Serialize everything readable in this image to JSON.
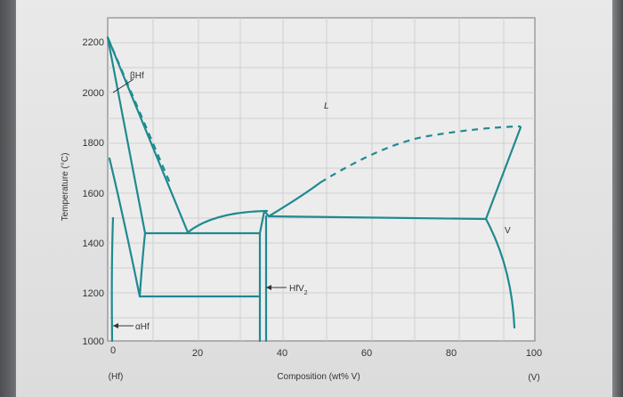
{
  "diagram": {
    "y_axis": {
      "label": "Temperature (°C)",
      "ticks": [
        "2200",
        "2000",
        "1800",
        "1600",
        "1400",
        "1200",
        "1000"
      ]
    },
    "x_axis": {
      "label": "Composition (wt% V)",
      "ticks": [
        "0",
        "20",
        "40",
        "60",
        "80",
        "100"
      ],
      "left_end": "(Hf)",
      "right_end": "(V)"
    },
    "phases": {
      "beta_hf": "βHf",
      "alpha_hf": "αHf",
      "liquid": "L",
      "hfv2_base": "HfV",
      "hfv2_sub": "2",
      "v": "V"
    },
    "colors": {
      "curve": "#1f8a8f",
      "grid": "#d2d2d2",
      "frame": "#8a8a8a"
    }
  }
}
